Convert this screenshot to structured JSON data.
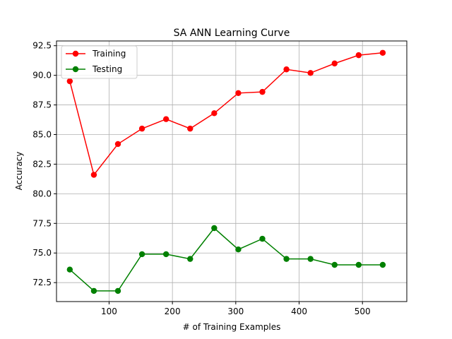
{
  "chart_data": {
    "type": "line",
    "title": "SA ANN Learning Curve",
    "xlabel": "# of Training Examples",
    "ylabel": "Accuracy",
    "xlim": [
      17,
      570
    ],
    "ylim": [
      70.9,
      92.9
    ],
    "xticks": [
      100,
      200,
      300,
      400,
      500
    ],
    "yticks": [
      72.5,
      75.0,
      77.5,
      80.0,
      82.5,
      85.0,
      87.5,
      90.0,
      92.5
    ],
    "ytick_labels": [
      "72.5",
      "75.0",
      "77.5",
      "80.0",
      "82.5",
      "85.0",
      "87.5",
      "90.0",
      "92.5"
    ],
    "grid": true,
    "legend": "top-left",
    "x": [
      38,
      76,
      114,
      152,
      190,
      228,
      266,
      304,
      342,
      380,
      418,
      456,
      494,
      532
    ],
    "series": [
      {
        "name": "Training",
        "color": "#ff0000",
        "values": [
          89.5,
          81.6,
          84.2,
          85.5,
          86.3,
          85.5,
          86.8,
          88.5,
          88.6,
          90.5,
          90.2,
          91.0,
          91.7,
          91.9
        ]
      },
      {
        "name": "Testing",
        "color": "#008000",
        "values": [
          73.6,
          71.8,
          71.8,
          74.9,
          74.9,
          74.5,
          77.1,
          75.3,
          76.2,
          74.5,
          74.5,
          74.0,
          74.0,
          74.0
        ]
      }
    ]
  }
}
